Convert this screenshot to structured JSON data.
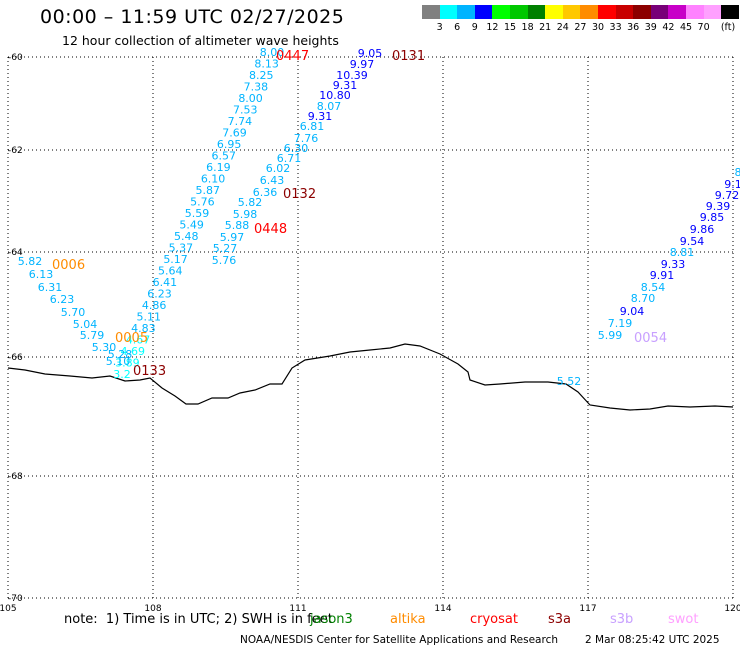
{
  "header": {
    "title": "00:00 – 11:59 UTC 02/27/2025",
    "subtitle": "12 hour collection of altimeter wave heights"
  },
  "colorbar": {
    "swatches": [
      "#808080",
      "#00ffff",
      "#00b4ff",
      "#0000ff",
      "#00ff00",
      "#00c800",
      "#008000",
      "#ffff00",
      "#ffc800",
      "#ff8c00",
      "#ff0000",
      "#c80000",
      "#8c0000",
      "#780078",
      "#c800c8",
      "#ff82ff",
      "#ffa0ff",
      "#000000"
    ],
    "labels": [
      "3",
      "6",
      "9",
      "12",
      "15",
      "18",
      "21",
      "24",
      "27",
      "30",
      "33",
      "36",
      "39",
      "42",
      "45",
      "70"
    ],
    "unit": "(ft)"
  },
  "map": {
    "lat_ticks": [
      "-60",
      "-62",
      "-64",
      "-66",
      "-68",
      "-70"
    ],
    "lon_ticks": [
      "105",
      "108",
      "111",
      "114",
      "117",
      "120"
    ],
    "coast_color": "#000000",
    "grid_color": "#000000"
  },
  "tracks": [
    {
      "pass": "0447",
      "pass_color": "#ff0000",
      "values": [
        "8.00",
        "8.13",
        "8.25",
        "7.38",
        "8.00",
        "7.53",
        "7.74",
        "7.69",
        "6.95",
        "6.57",
        "6.19",
        "6.10",
        "5.87",
        "5.76",
        "5.59",
        "5.49",
        "5.48",
        "5.37",
        "5.17",
        "5.64",
        "6.41",
        "6.23",
        "4.86",
        "5.11",
        "4.83",
        "4.67",
        "4.69",
        "3.89",
        "3.2"
      ],
      "colors": [
        "#00b4ff",
        "#00b4ff",
        "#00b4ff",
        "#00b4ff",
        "#00b4ff",
        "#00b4ff",
        "#00b4ff",
        "#00b4ff",
        "#00b4ff",
        "#00b4ff",
        "#00b4ff",
        "#00b4ff",
        "#00b4ff",
        "#00b4ff",
        "#00b4ff",
        "#00b4ff",
        "#00b4ff",
        "#00b4ff",
        "#00b4ff",
        "#00b4ff",
        "#00b4ff",
        "#00b4ff",
        "#00b4ff",
        "#00b4ff",
        "#00b4ff",
        "#00ffff",
        "#00ffff",
        "#00ffff",
        "#00ffff"
      ]
    },
    {
      "pass": "0448",
      "pass_color": "#ff0000",
      "values": [
        "6.71",
        "6.02",
        "6.43",
        "6.36",
        "5.82",
        "5.98",
        "5.88",
        "5.97",
        "5.27",
        "5.76"
      ],
      "colors": [
        "#00b4ff",
        "#00b4ff",
        "#00b4ff",
        "#00b4ff",
        "#00b4ff",
        "#00b4ff",
        "#00b4ff",
        "#00b4ff",
        "#00b4ff",
        "#00b4ff"
      ]
    },
    {
      "pass": "0131",
      "pass_color": "#8c0000",
      "values": [
        "9.05",
        "9.97",
        "10.39",
        "9.31",
        "10.80",
        "8.07",
        "9.31",
        "6.81",
        "7.76",
        "6.30"
      ],
      "colors": [
        "#0000ff",
        "#0000ff",
        "#0000ff",
        "#0000ff",
        "#0000ff",
        "#00b4ff",
        "#0000ff",
        "#00b4ff",
        "#00b4ff",
        "#00b4ff"
      ]
    },
    {
      "pass": "0132",
      "pass_color": "#8c0000"
    },
    {
      "pass": "0006",
      "pass_color": "#ff8c00",
      "values": [
        "5.82",
        "6.13",
        "6.31",
        "6.23",
        "5.70",
        "5.04",
        "5.79",
        "5.30",
        "5.28",
        "5.10"
      ],
      "colors": [
        "#00b4ff",
        "#00b4ff",
        "#00b4ff",
        "#00b4ff",
        "#00b4ff",
        "#00b4ff",
        "#00b4ff",
        "#00b4ff",
        "#00b4ff",
        "#00b4ff"
      ]
    },
    {
      "pass": "0005",
      "pass_color": "#ff8c00"
    },
    {
      "pass": "0133",
      "pass_color": "#8c0000"
    },
    {
      "pass": "0054",
      "pass_color": "#c8a0ff",
      "values": [
        "5.99",
        "7.19",
        "9.04",
        "8.70",
        "8.54",
        "9.91",
        "9.33",
        "8.81",
        "9.54",
        "9.86",
        "9.85",
        "9.39",
        "9.72",
        "9.1",
        "8"
      ],
      "colors": [
        "#00b4ff",
        "#00b4ff",
        "#0000ff",
        "#00b4ff",
        "#00b4ff",
        "#0000ff",
        "#0000ff",
        "#00b4ff",
        "#0000ff",
        "#0000ff",
        "#0000ff",
        "#0000ff",
        "#0000ff",
        "#0000ff",
        "#00b4ff"
      ]
    },
    {
      "pass": "",
      "values": [
        "5.52"
      ],
      "colors": [
        "#00b4ff"
      ]
    }
  ],
  "footer": {
    "note": "note:  1) Time is in UTC; 2) SWH is in feet",
    "satellites": [
      {
        "name": "jason3",
        "color": "#008000"
      },
      {
        "name": "altika",
        "color": "#ff8c00"
      },
      {
        "name": "cryosat",
        "color": "#ff0000"
      },
      {
        "name": "s3a",
        "color": "#8c0000"
      },
      {
        "name": "s3b",
        "color": "#c8a0ff"
      },
      {
        "name": "swot",
        "color": "#ffa0ff"
      }
    ],
    "credit": "NOAA/NESDIS Center for Satellite Applications and Research",
    "timestamp": "2 Mar 08:25:42 UTC 2025"
  }
}
